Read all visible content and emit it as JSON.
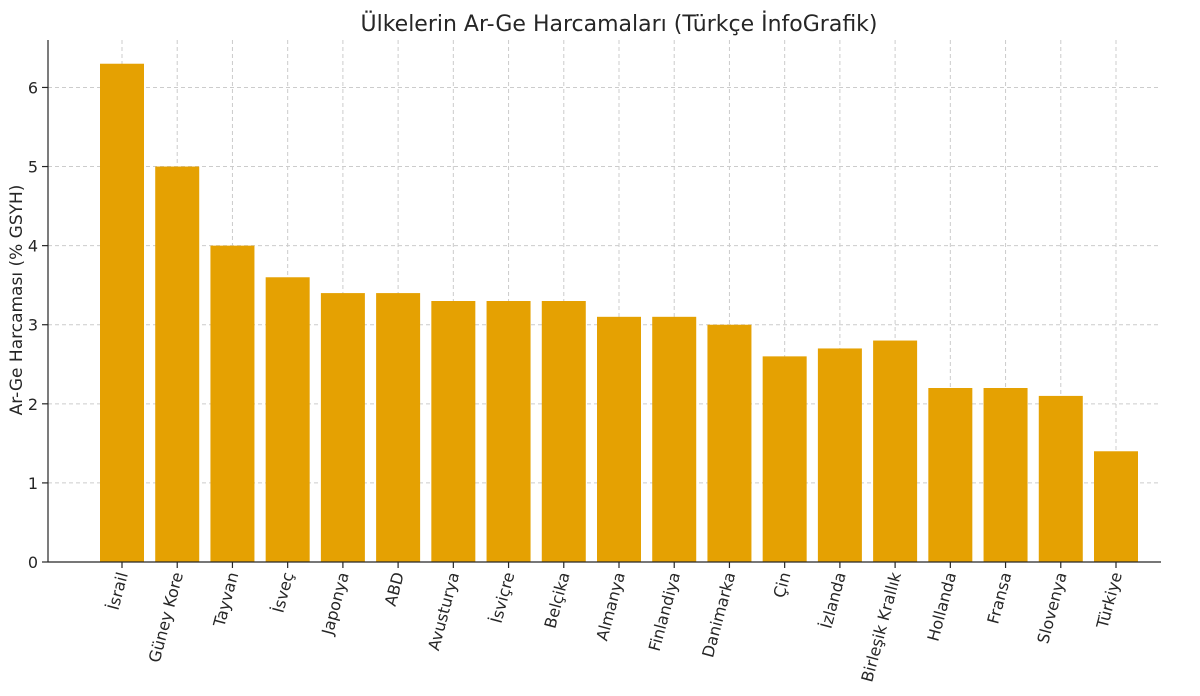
{
  "chart_data": {
    "type": "bar",
    "title": "Ülkelerin Ar-Ge Harcamaları (Türkçe İnfoGrafik)",
    "xlabel": "",
    "ylabel": "Ar-Ge Harcaması (% GSYH)",
    "categories": [
      "İsrail",
      "Güney Kore",
      "Tayvan",
      "İsveç",
      "Japonya",
      "ABD",
      "Avusturya",
      "İsviçre",
      "Belçika",
      "Almanya",
      "Finlandiya",
      "Danimarka",
      "Çin",
      "İzlanda",
      "Birleşik Krallık",
      "Hollanda",
      "Fransa",
      "Slovenya",
      "Türkiye"
    ],
    "values": [
      6.3,
      5.0,
      4.0,
      3.6,
      3.4,
      3.4,
      3.3,
      3.3,
      3.3,
      3.1,
      3.1,
      3.0,
      2.6,
      2.7,
      2.8,
      2.2,
      2.2,
      2.1,
      1.4
    ],
    "yticks": [
      "0",
      "1",
      "2",
      "3",
      "4",
      "5",
      "6"
    ],
    "ylim": [
      0,
      6.6
    ],
    "grid": true,
    "bar_color": "#E5A102",
    "x_tick_rotation_deg": 75
  }
}
